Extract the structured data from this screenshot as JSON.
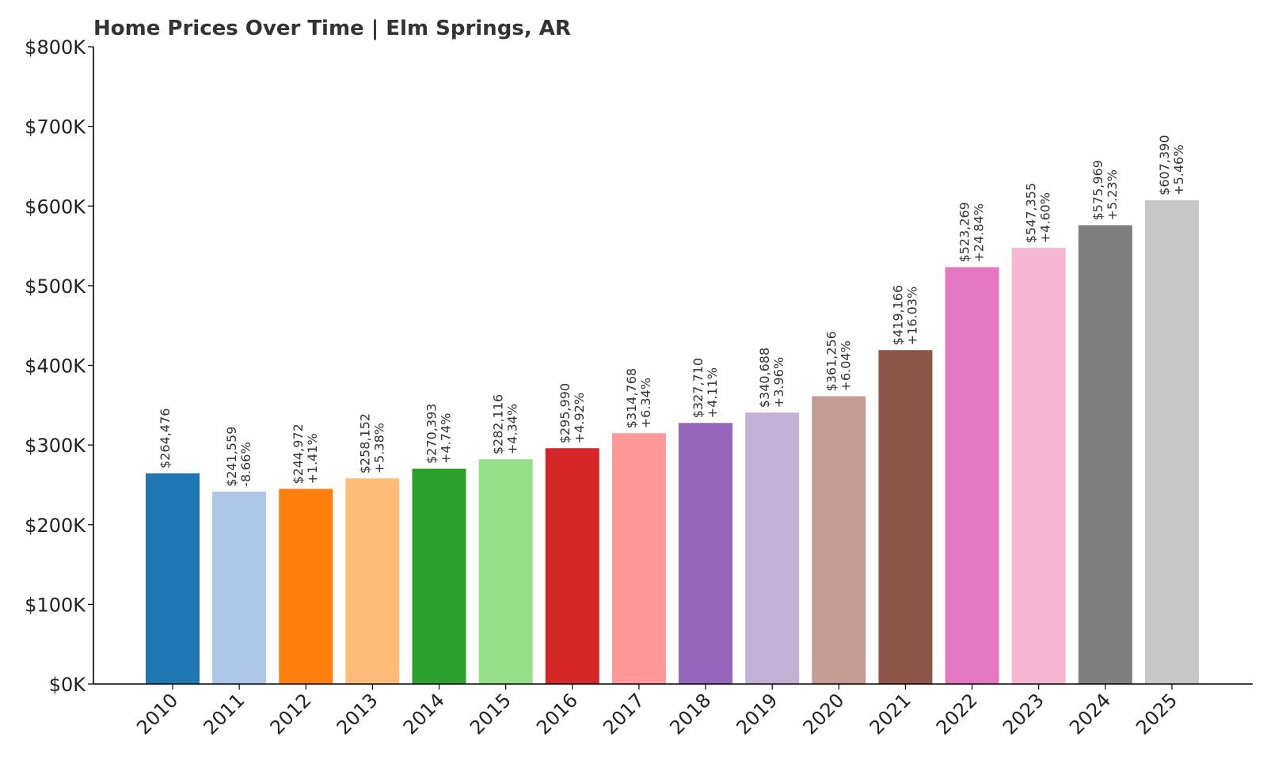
{
  "chart_data": {
    "type": "bar",
    "title": "Home Prices Over Time | Elm Springs, AR",
    "xlabel": "",
    "ylabel": "",
    "ylim": [
      0,
      800000
    ],
    "yticks": [
      0,
      100000,
      200000,
      300000,
      400000,
      500000,
      600000,
      700000,
      800000
    ],
    "ytick_labels": [
      "$0K",
      "$100K",
      "$200K",
      "$300K",
      "$400K",
      "$500K",
      "$600K",
      "$700K",
      "$800K"
    ],
    "grid": false,
    "categories": [
      "2010",
      "2011",
      "2012",
      "2013",
      "2014",
      "2015",
      "2016",
      "2017",
      "2018",
      "2019",
      "2020",
      "2021",
      "2022",
      "2023",
      "2024",
      "2025"
    ],
    "values": [
      264476,
      241559,
      244972,
      258152,
      270393,
      282116,
      295990,
      314768,
      327710,
      340688,
      361256,
      419166,
      523269,
      547355,
      575969,
      607390
    ],
    "value_labels": [
      "$264,476",
      "$241,559",
      "$244,972",
      "$258,152",
      "$270,393",
      "$282,116",
      "$295,990",
      "$314,768",
      "$327,710",
      "$340,688",
      "$361,256",
      "$419,166",
      "$523,269",
      "$547,355",
      "$575,969",
      "$607,390"
    ],
    "change_labels": [
      "",
      "-8.66%",
      "+1.41%",
      "+5.38%",
      "+4.74%",
      "+4.34%",
      "+4.92%",
      "+6.34%",
      "+4.11%",
      "+3.96%",
      "+6.04%",
      "+16.03%",
      "+24.84%",
      "+4.60%",
      "+5.23%",
      "+5.46%"
    ],
    "colors": [
      "#1f77b4",
      "#aec7e8",
      "#ff7f0e",
      "#ffbb78",
      "#2ca02c",
      "#98df8a",
      "#d62728",
      "#ff9896",
      "#9467bd",
      "#c5b0d5",
      "#c49c94",
      "#8c564b",
      "#e377c2",
      "#f7b6d2",
      "#7f7f7f",
      "#c7c7c7"
    ]
  }
}
